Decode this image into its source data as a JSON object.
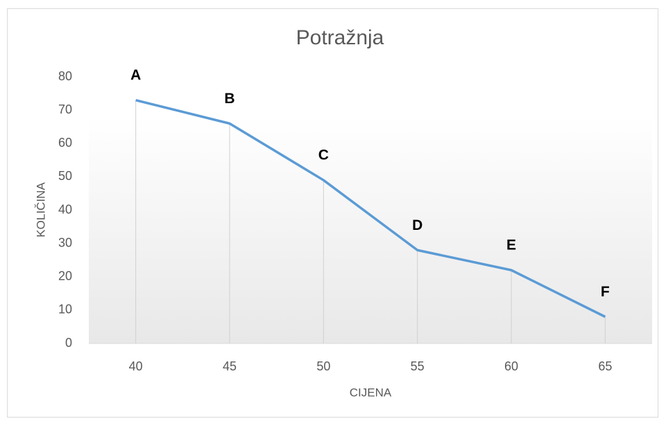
{
  "chart_data": {
    "type": "line",
    "title": "Potražnja",
    "x_label": "CIJENA",
    "y_label": "KOLIČINA",
    "categories": [
      "40",
      "45",
      "50",
      "55",
      "60",
      "65"
    ],
    "series": [
      {
        "name": "Potražnja",
        "color": "#5b9bd5",
        "values": [
          73,
          66,
          49,
          28,
          22,
          8
        ]
      }
    ],
    "point_labels": [
      "A",
      "B",
      "C",
      "D",
      "E",
      "F"
    ],
    "drop_lines": true,
    "ylim": [
      0,
      80
    ],
    "yticks": [
      0,
      10,
      20,
      30,
      40,
      50,
      60,
      70,
      80
    ],
    "grid": false
  }
}
